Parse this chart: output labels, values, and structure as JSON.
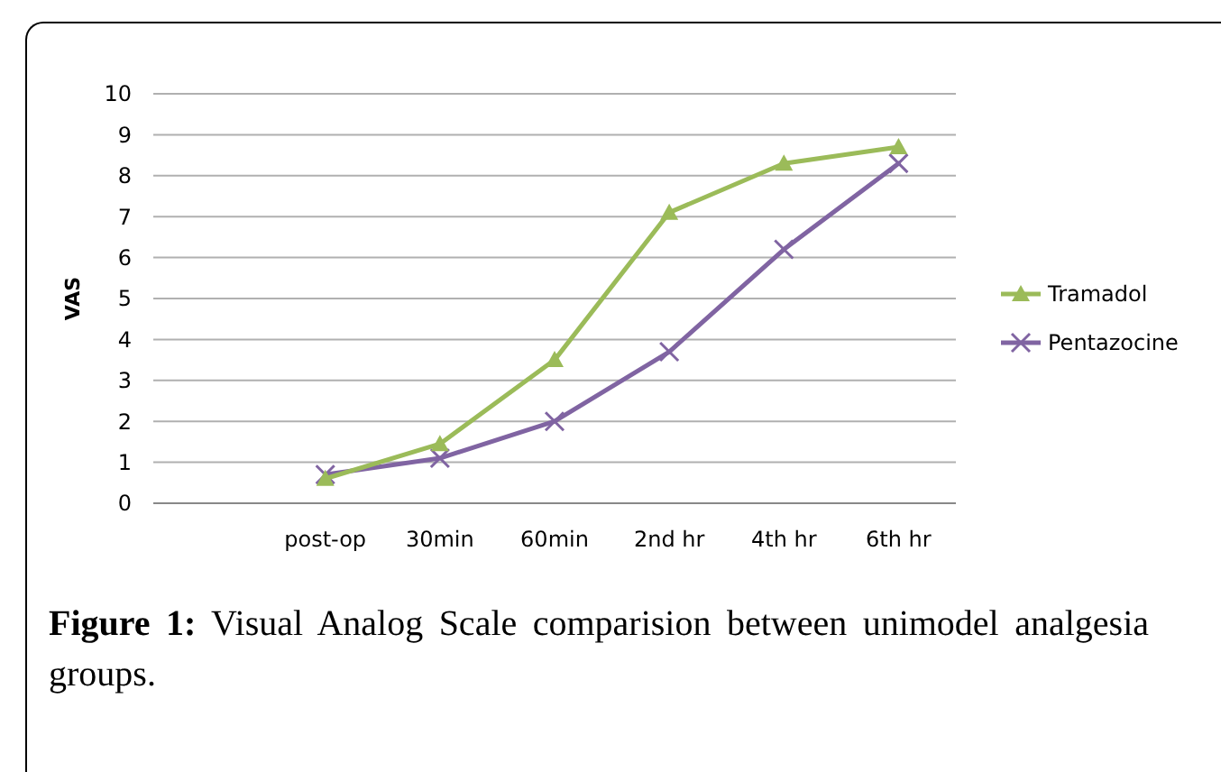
{
  "chart_data": {
    "type": "line",
    "ylabel": "VAS",
    "categories": [
      null,
      "post-op",
      "30min",
      "60min",
      "2nd hr",
      "4th hr",
      "6th hr"
    ],
    "series": [
      {
        "name": "Tramadol",
        "color": "#9bbb59",
        "marker": "triangle",
        "values": [
          null,
          0.6,
          1.45,
          3.5,
          7.1,
          8.3,
          8.7
        ]
      },
      {
        "name": "Pentazocine",
        "color": "#8064a2",
        "marker": "cross",
        "values": [
          null,
          0.7,
          1.1,
          2.0,
          3.7,
          6.2,
          8.3
        ]
      }
    ],
    "ylim": [
      0,
      10
    ],
    "yticks": [
      0,
      1,
      2,
      3,
      4,
      5,
      6,
      7,
      8,
      9,
      10
    ],
    "grid": "y",
    "legend": "right",
    "annotations": [
      "Figure 1: Visual Analog Scale comparision between unimodel analgesia groups."
    ]
  }
}
